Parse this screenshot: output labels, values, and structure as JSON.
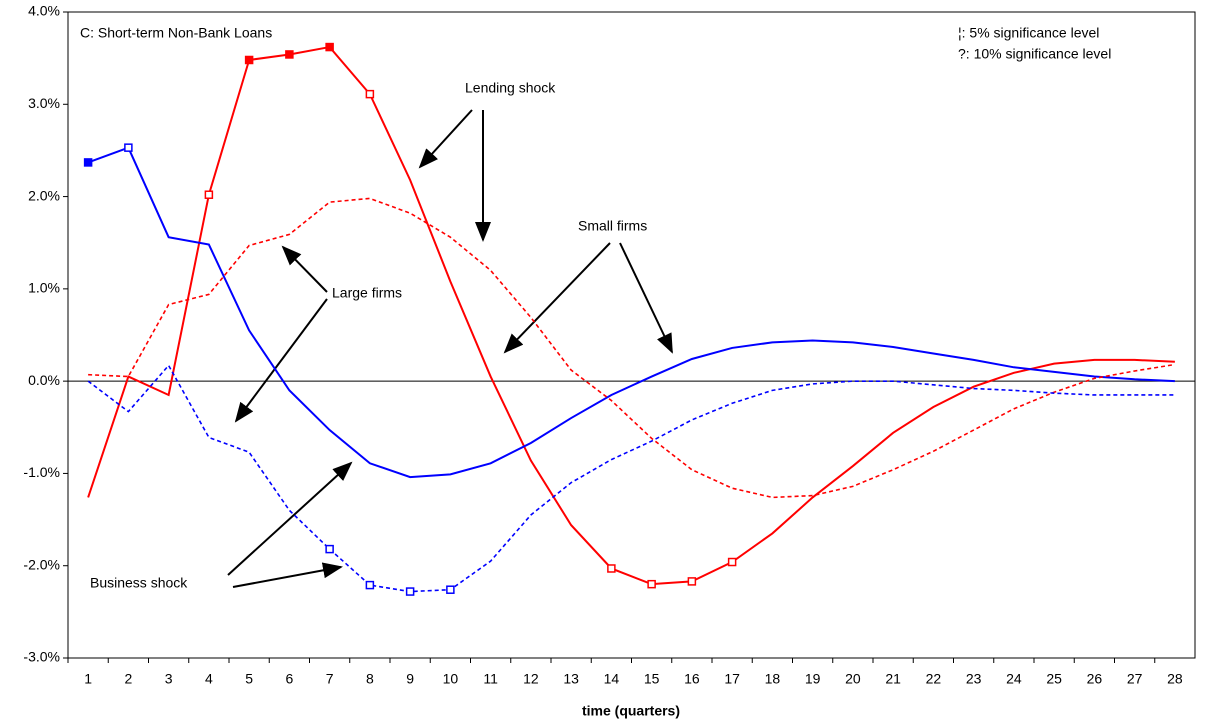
{
  "chart_data": {
    "type": "line",
    "title": "C: Short-term Non-Bank Loans",
    "x_label": "time (quarters)",
    "significance_notes": [
      "¦:  5% significance level",
      "?: 10% significance level"
    ],
    "annotations": [
      "Lending shock",
      "Small firms",
      "Large firms",
      "Business shock"
    ],
    "categories": [
      "1",
      "2",
      "3",
      "4",
      "5",
      "6",
      "7",
      "8",
      "9",
      "10",
      "11",
      "12",
      "13",
      "14",
      "15",
      "16",
      "17",
      "18",
      "19",
      "20",
      "21",
      "22",
      "23",
      "24",
      "25",
      "26",
      "27",
      "28"
    ],
    "ylim": [
      -3,
      4
    ],
    "yticks": [
      {
        "value": -3,
        "label": "-3.0%"
      },
      {
        "value": -2,
        "label": "-2.0%"
      },
      {
        "value": -1,
        "label": "-1.0%"
      },
      {
        "value": 0,
        "label": "0.0%"
      },
      {
        "value": 1,
        "label": "1.0%"
      },
      {
        "value": 2,
        "label": "2.0%"
      },
      {
        "value": 3,
        "label": "3.0%"
      },
      {
        "value": 4,
        "label": "4.0%"
      }
    ],
    "series": [
      {
        "color": "#ff0000",
        "style": "solid",
        "values": [
          -1.26,
          0.05,
          -0.15,
          2.02,
          3.48,
          3.54,
          3.62,
          3.11,
          2.18,
          1.08,
          0.05,
          -0.86,
          -1.56,
          -2.03,
          -2.2,
          -2.17,
          -1.96,
          -1.65,
          -1.26,
          -0.92,
          -0.56,
          -0.28,
          -0.06,
          0.09,
          0.19,
          0.23,
          0.23,
          0.21
        ],
        "markers": [
          null,
          null,
          null,
          "open",
          "filled",
          "filled",
          "filled",
          "open",
          null,
          null,
          null,
          null,
          null,
          "open",
          "open",
          "open",
          "open",
          null,
          null,
          null,
          null,
          null,
          null,
          null,
          null,
          null,
          null,
          null
        ]
      },
      {
        "color": "#0000ff",
        "style": "solid",
        "values": [
          2.37,
          2.53,
          1.56,
          1.48,
          0.55,
          -0.1,
          -0.53,
          -0.89,
          -1.04,
          -1.01,
          -0.89,
          -0.67,
          -0.4,
          -0.15,
          0.05,
          0.24,
          0.36,
          0.42,
          0.44,
          0.42,
          0.37,
          0.3,
          0.23,
          0.15,
          0.1,
          0.05,
          0.02,
          0
        ],
        "markers": [
          "filled",
          "open",
          null,
          null,
          null,
          null,
          null,
          null,
          null,
          null,
          null,
          null,
          null,
          null,
          null,
          null,
          null,
          null,
          null,
          null,
          null,
          null,
          null,
          null,
          null,
          null,
          null,
          null
        ]
      },
      {
        "color": "#ff0000",
        "style": "dotted",
        "values": [
          0.07,
          0.05,
          0.83,
          0.94,
          1.47,
          1.59,
          1.94,
          1.98,
          1.82,
          1.56,
          1.2,
          0.69,
          0.12,
          -0.21,
          -0.62,
          -0.96,
          -1.16,
          -1.26,
          -1.24,
          -1.14,
          -0.96,
          -0.76,
          -0.53,
          -0.3,
          -0.12,
          0.03,
          0.11,
          0.18
        ],
        "markers": [
          null,
          null,
          null,
          null,
          null,
          null,
          null,
          null,
          null,
          null,
          null,
          null,
          null,
          null,
          null,
          null,
          null,
          null,
          null,
          null,
          null,
          null,
          null,
          null,
          null,
          null,
          null,
          null
        ]
      },
      {
        "color": "#0000ff",
        "style": "dotted",
        "values": [
          0,
          -0.33,
          0.17,
          -0.61,
          -0.77,
          -1.4,
          -1.82,
          -2.21,
          -2.28,
          -2.26,
          -1.95,
          -1.45,
          -1.1,
          -0.85,
          -0.65,
          -0.42,
          -0.24,
          -0.1,
          -0.03,
          0,
          0,
          -0.04,
          -0.08,
          -0.1,
          -0.13,
          -0.15,
          -0.15,
          -0.15
        ],
        "markers": [
          null,
          null,
          null,
          null,
          null,
          null,
          "open",
          "open",
          "open",
          "open",
          null,
          null,
          null,
          null,
          null,
          null,
          null,
          null,
          null,
          null,
          null,
          null,
          null,
          null,
          null,
          null,
          null,
          null
        ]
      }
    ]
  }
}
